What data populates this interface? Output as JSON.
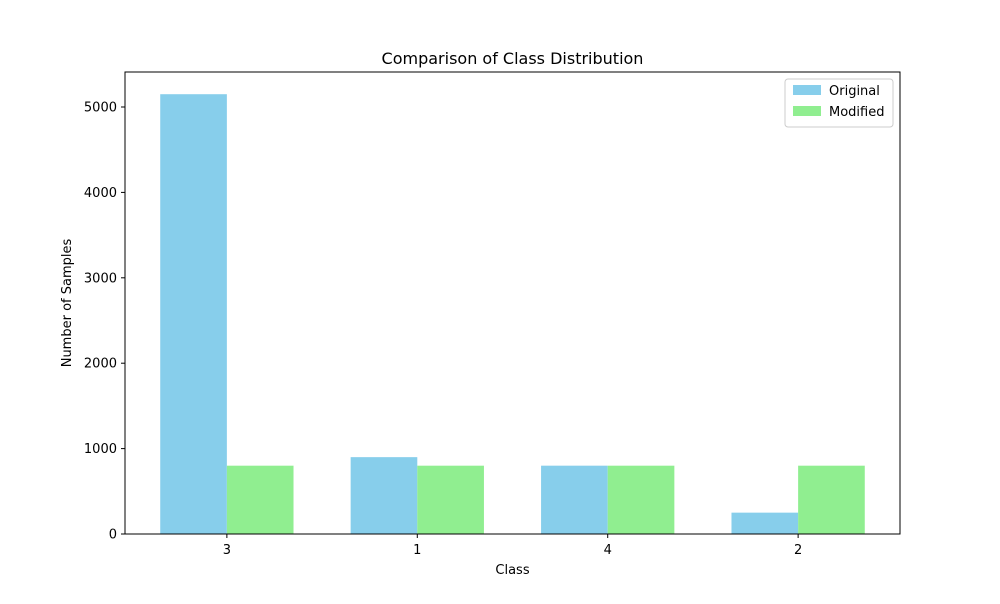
{
  "chart_data": {
    "type": "bar",
    "title": "Comparison of Class Distribution",
    "xlabel": "Class",
    "ylabel": "Number of Samples",
    "categories": [
      "3",
      "1",
      "4",
      "2"
    ],
    "series": [
      {
        "name": "Original",
        "values": [
          5150,
          900,
          800,
          250
        ]
      },
      {
        "name": "Modified",
        "values": [
          800,
          800,
          800,
          800
        ]
      }
    ],
    "ylim": [
      0,
      5410
    ],
    "yticks": [
      0,
      1000,
      2000,
      3000,
      4000,
      5000
    ],
    "grid": false,
    "legend_position": "top-right",
    "colors": {
      "Original": "#87ceeb",
      "Modified": "#90ee90",
      "axes": "#000000",
      "background": "#ffffff"
    }
  }
}
